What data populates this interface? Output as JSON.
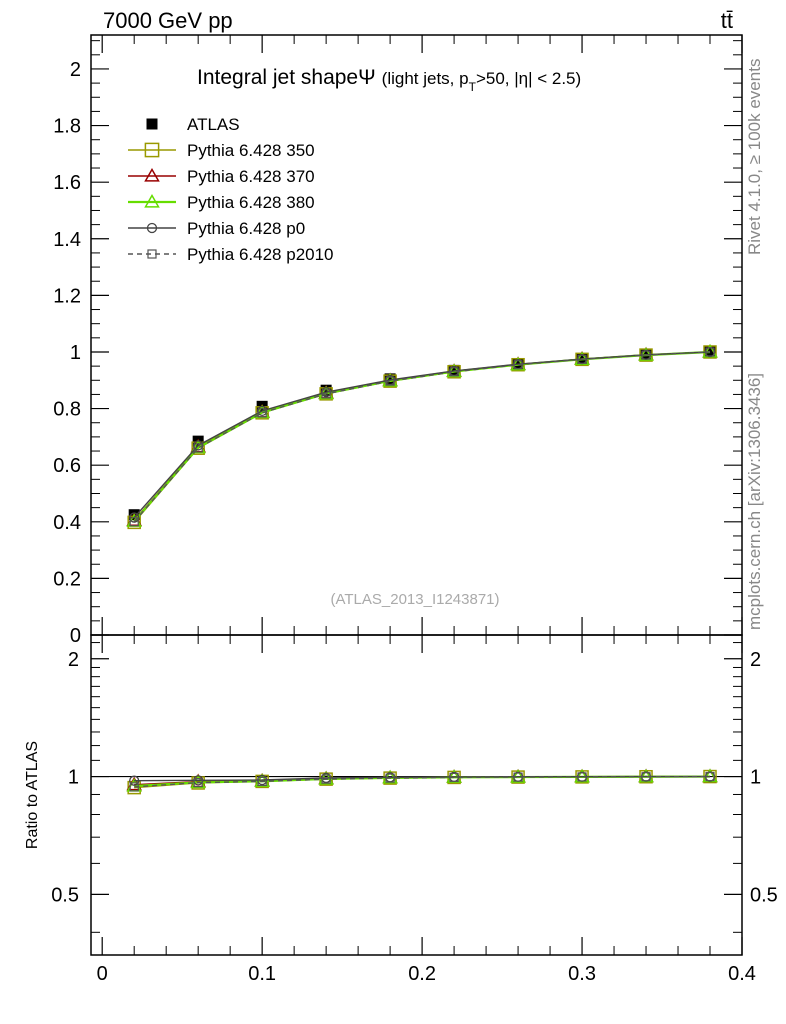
{
  "header": {
    "left": "7000 GeV pp",
    "right": "tt̄"
  },
  "side_text": {
    "rivet": "Rivet 4.1.0, ≥ 100k events",
    "mcplots": "mcplots.cern.ch [arXiv:1306.3436]"
  },
  "watermark": "(ATLAS_2013_I1243871)",
  "chart_data": [
    {
      "type": "line",
      "title": "Integral jet shapeΨ",
      "title_main": "Integral jet shapeΨ",
      "title_sub": "(light jets, p",
      "title_sub_T": "T",
      "title_sub_rest": ">50, |η| < 2.5)",
      "xlabel": "",
      "ylabel": "",
      "xlim": [
        -0.007,
        0.4
      ],
      "ylim": [
        0,
        2.12
      ],
      "x_ticks": [
        0,
        0.1,
        0.2,
        0.3,
        0.4
      ],
      "x_tick_labels": [
        "0",
        "0.1",
        "0.2",
        "0.3",
        "0.4"
      ],
      "y_ticks": [
        0,
        0.2,
        0.4,
        0.6,
        0.8,
        1,
        1.2,
        1.4,
        1.6,
        1.8,
        2
      ],
      "y_tick_labels": [
        "0",
        "0.2",
        "0.4",
        "0.6",
        "0.8",
        "1",
        "1.2",
        "1.4",
        "1.6",
        "1.8",
        "2"
      ],
      "x": [
        0.02,
        0.06,
        0.1,
        0.14,
        0.18,
        0.22,
        0.26,
        0.3,
        0.34,
        0.38
      ],
      "legend_position": "top-left",
      "series": [
        {
          "name": "ATLAS",
          "marker": "filled-square",
          "color": "#000000",
          "line": "none",
          "values": [
            0.425,
            0.685,
            0.808,
            0.865,
            0.905,
            0.935,
            0.958,
            0.976,
            0.99,
            1.0
          ]
        },
        {
          "name": "Pythia 6.428 350",
          "marker": "open-square",
          "color": "#999900",
          "line": "solid",
          "values": [
            0.398,
            0.66,
            0.785,
            0.852,
            0.897,
            0.93,
            0.955,
            0.974,
            0.989,
            1.0
          ]
        },
        {
          "name": "Pythia 6.428 370",
          "marker": "open-triangle",
          "color": "#990000",
          "line": "solid",
          "values": [
            0.405,
            0.665,
            0.788,
            0.855,
            0.899,
            0.932,
            0.956,
            0.975,
            0.99,
            1.0
          ]
        },
        {
          "name": "Pythia 6.428 380",
          "marker": "open-triangle",
          "color": "#66dd00",
          "line": "solid",
          "values": [
            0.402,
            0.662,
            0.786,
            0.853,
            0.898,
            0.931,
            0.955,
            0.974,
            0.989,
            1.0
          ]
        },
        {
          "name": "Pythia 6.428 p0",
          "marker": "open-circle",
          "color": "#444444",
          "line": "solid",
          "values": [
            0.415,
            0.67,
            0.792,
            0.858,
            0.901,
            0.933,
            0.957,
            0.975,
            0.99,
            1.0
          ]
        },
        {
          "name": "Pythia 6.428 p2010",
          "marker": "open-square-small",
          "color": "#555555",
          "line": "dashed",
          "values": [
            0.4,
            0.661,
            0.785,
            0.852,
            0.897,
            0.93,
            0.955,
            0.974,
            0.989,
            1.0
          ]
        }
      ]
    },
    {
      "type": "line",
      "title": "",
      "xlabel": "",
      "ylabel": "Ratio to ATLAS",
      "xlim": [
        -0.007,
        0.4
      ],
      "ylim": [
        0.35,
        2.3
      ],
      "x_ticks": [
        0,
        0.1,
        0.2,
        0.3,
        0.4
      ],
      "y_ticks": [
        0.5,
        1,
        2
      ],
      "y_tick_labels": [
        "0.5",
        "1",
        "2"
      ],
      "reference_line": 1,
      "x": [
        0.02,
        0.06,
        0.1,
        0.14,
        0.18,
        0.22,
        0.26,
        0.3,
        0.34,
        0.38
      ],
      "series": [
        {
          "name": "Pythia 6.428 350",
          "color": "#999900",
          "marker": "open-square",
          "line": "solid",
          "values": [
            0.937,
            0.963,
            0.972,
            0.985,
            0.991,
            0.995,
            0.997,
            0.998,
            0.999,
            1.0
          ]
        },
        {
          "name": "Pythia 6.428 370",
          "color": "#990000",
          "marker": "open-triangle",
          "line": "solid",
          "values": [
            0.953,
            0.971,
            0.975,
            0.988,
            0.993,
            0.997,
            0.998,
            0.999,
            1.0,
            1.0
          ]
        },
        {
          "name": "Pythia 6.428 380",
          "color": "#66dd00",
          "marker": "open-triangle",
          "line": "solid",
          "values": [
            0.946,
            0.966,
            0.973,
            0.986,
            0.992,
            0.996,
            0.997,
            0.998,
            0.999,
            1.0
          ]
        },
        {
          "name": "Pythia 6.428 p0",
          "color": "#444444",
          "marker": "open-circle",
          "line": "solid",
          "values": [
            0.976,
            0.978,
            0.98,
            0.992,
            0.996,
            0.998,
            0.999,
            0.999,
            1.0,
            1.0
          ]
        },
        {
          "name": "Pythia 6.428 p2010",
          "color": "#555555",
          "marker": "open-square-small",
          "line": "dashed",
          "values": [
            0.941,
            0.965,
            0.972,
            0.985,
            0.991,
            0.995,
            0.997,
            0.998,
            0.999,
            1.0
          ]
        }
      ]
    }
  ]
}
